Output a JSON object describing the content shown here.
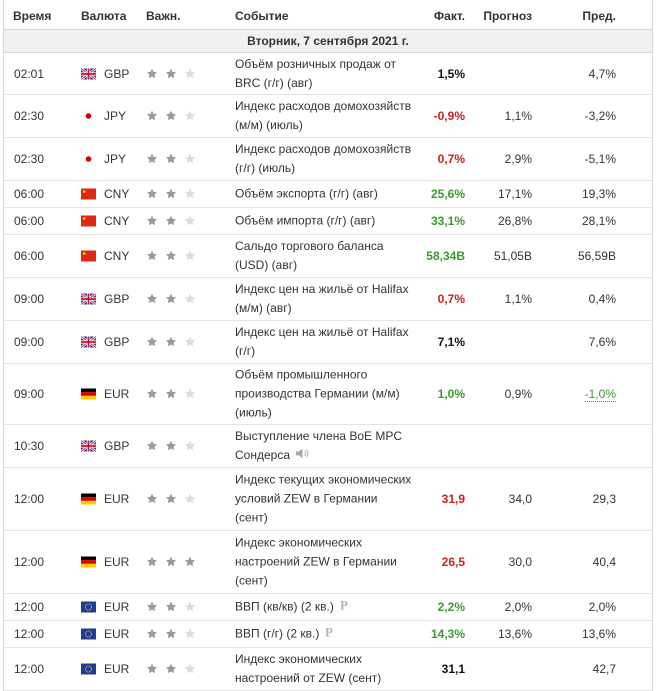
{
  "header": {
    "time": "Время",
    "currency": "Валюта",
    "importance": "Важн.",
    "event": "Событие",
    "actual": "Факт.",
    "forecast": "Прогноз",
    "previous": "Пред."
  },
  "day_label": "Вторник, 7 сентября 2021 г.",
  "colors": {
    "positive": "#3a9a2c",
    "negative": "#cc1f1f",
    "star_on": "#9a9a9a",
    "star_off": "#dcdcdc"
  },
  "rows": [
    {
      "time": "02:01",
      "flag": "uk-flag-icon",
      "cur": "GBP",
      "stars": 2,
      "ev": [
        "Объём розничных продаж от",
        "BRC (г/г) (авг)"
      ],
      "act": "1,5%",
      "act_tone": "neu",
      "fc": "",
      "prev": "4,7%",
      "icon": ""
    },
    {
      "time": "02:30",
      "flag": "japan-flag-icon",
      "cur": "JPY",
      "stars": 2,
      "ev": [
        "Индекс расходов домохозяйств",
        "(м/м) (июль)"
      ],
      "act": "-0,9%",
      "act_tone": "neg",
      "fc": "1,1%",
      "prev": "-3,2%",
      "icon": ""
    },
    {
      "time": "02:30",
      "flag": "japan-flag-icon",
      "cur": "JPY",
      "stars": 2,
      "ev": [
        "Индекс расходов домохозяйств",
        "(г/г) (июль)"
      ],
      "act": "0,7%",
      "act_tone": "neg",
      "fc": "2,9%",
      "prev": "-5,1%",
      "icon": ""
    },
    {
      "time": "06:00",
      "flag": "china-flag-icon",
      "cur": "CNY",
      "stars": 2,
      "ev": [
        "Объём экспорта (г/г) (авг)"
      ],
      "act": "25,6%",
      "act_tone": "pos",
      "fc": "17,1%",
      "prev": "19,3%",
      "icon": ""
    },
    {
      "time": "06:00",
      "flag": "china-flag-icon",
      "cur": "CNY",
      "stars": 2,
      "ev": [
        "Объём импорта (г/г) (авг)"
      ],
      "act": "33,1%",
      "act_tone": "pos",
      "fc": "26,8%",
      "prev": "28,1%",
      "icon": ""
    },
    {
      "time": "06:00",
      "flag": "china-flag-icon",
      "cur": "CNY",
      "stars": 2,
      "ev": [
        "Сальдо торгового баланса",
        "(USD) (авг)"
      ],
      "act": "58,34B",
      "act_tone": "pos",
      "fc": "51,05B",
      "prev": "56,59B",
      "icon": ""
    },
    {
      "time": "09:00",
      "flag": "uk-flag-icon",
      "cur": "GBP",
      "stars": 2,
      "ev": [
        "Индекс цен на жильё от Halifax",
        "(м/м) (авг)"
      ],
      "act": "0,7%",
      "act_tone": "neg",
      "fc": "1,1%",
      "prev": "0,4%",
      "icon": ""
    },
    {
      "time": "09:00",
      "flag": "uk-flag-icon",
      "cur": "GBP",
      "stars": 2,
      "ev": [
        "Индекс цен на жильё от Halifax",
        "(г/г)"
      ],
      "act": "7,1%",
      "act_tone": "neu",
      "fc": "",
      "prev": "7,6%",
      "icon": ""
    },
    {
      "time": "09:00",
      "flag": "germany-flag-icon",
      "cur": "EUR",
      "stars": 2,
      "ev": [
        "Объём промышленного",
        "производства Германии (м/м)",
        "(июль)"
      ],
      "act": "1,0%",
      "act_tone": "pos",
      "fc": "0,9%",
      "prev": "-1,0%",
      "prev_revised": true,
      "icon": ""
    },
    {
      "time": "10:30",
      "flag": "uk-flag-icon",
      "cur": "GBP",
      "stars": 2,
      "ev": [
        "Выступление члена BoE MPC",
        "Сондерса"
      ],
      "act": "",
      "act_tone": "neu",
      "fc": "",
      "prev": "",
      "icon": "speaker-icon"
    },
    {
      "time": "12:00",
      "flag": "germany-flag-icon",
      "cur": "EUR",
      "stars": 2,
      "ev": [
        "Индекс текущих экономических",
        "условий ZEW в Германии",
        "(сент)"
      ],
      "act": "31,9",
      "act_tone": "neg",
      "fc": "34,0",
      "prev": "29,3",
      "icon": ""
    },
    {
      "time": "12:00",
      "flag": "germany-flag-icon",
      "cur": "EUR",
      "stars": 3,
      "ev": [
        "Индекс экономических",
        "настроений ZEW в Германии",
        "(сент)"
      ],
      "act": "26,5",
      "act_tone": "neg",
      "fc": "30,0",
      "prev": "40,4",
      "icon": ""
    },
    {
      "time": "12:00",
      "flag": "eu-flag-icon",
      "cur": "EUR",
      "stars": 2,
      "ev": [
        "ВВП (кв/кв) (2 кв.)"
      ],
      "act": "2,2%",
      "act_tone": "pos",
      "fc": "2,0%",
      "prev": "2,0%",
      "icon": "preliminary-icon"
    },
    {
      "time": "12:00",
      "flag": "eu-flag-icon",
      "cur": "EUR",
      "stars": 2,
      "ev": [
        "ВВП (г/г) (2 кв.)"
      ],
      "act": "14,3%",
      "act_tone": "pos",
      "fc": "13,6%",
      "prev": "13,6%",
      "icon": "preliminary-icon"
    },
    {
      "time": "12:00",
      "flag": "eu-flag-icon",
      "cur": "EUR",
      "stars": 2,
      "ev": [
        "Индекс экономических",
        "настроений от ZEW (сент)"
      ],
      "act": "31,1",
      "act_tone": "neu",
      "fc": "",
      "prev": "42,7",
      "icon": ""
    }
  ]
}
